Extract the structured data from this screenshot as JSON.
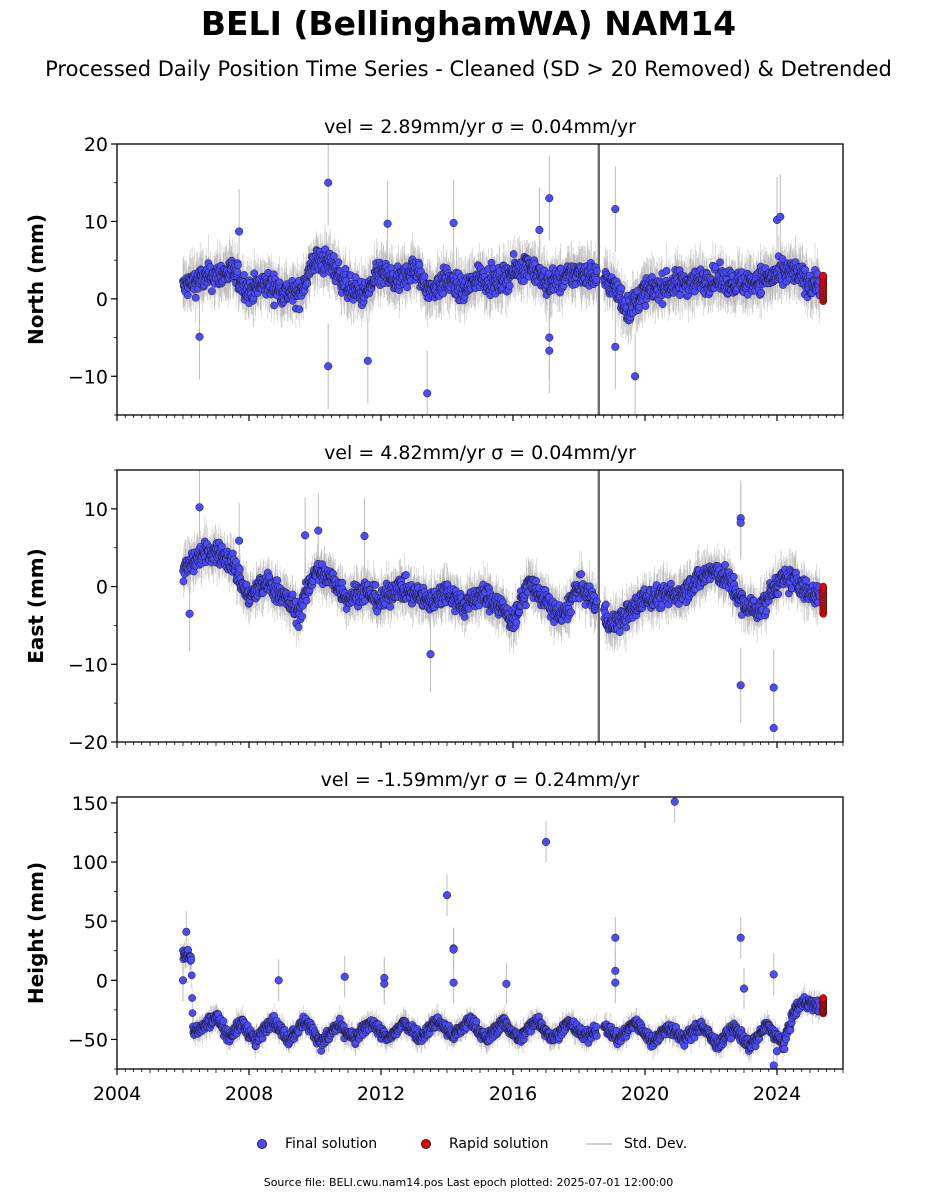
{
  "title": "BELI (BellinghamWA) NAM14",
  "subtitle": "Processed Daily Position Time Series - Cleaned (SD > 20 Removed) & Detrended",
  "legend": {
    "final": "Final solution",
    "rapid": "Rapid solution",
    "stddev": "Std. Dev."
  },
  "footer": "Source file: BELI.cwu.nam14.pos  Last epoch plotted: 2025-07-01 12:00:00",
  "colors": {
    "final": "#4a4aff",
    "rapid": "#ee0000",
    "stddev": "#bdbdbd",
    "edge": "#1a1a1a"
  },
  "chart_data": [
    {
      "type": "scatter",
      "name_panel": "north",
      "title": "vel = 2.89mm/yr   σ = 0.04mm/yr",
      "ylabel": "North (mm)",
      "xlim": [
        2004,
        2026
      ],
      "ylim": [
        -15,
        20
      ],
      "yticks": [
        -10,
        0,
        10,
        20
      ],
      "ytick_labels": [
        "−10",
        "0",
        "10",
        "20"
      ],
      "xticks": [
        2004,
        2008,
        2012,
        2016,
        2020,
        2024
      ],
      "xtick_labels": [],
      "trend": [
        [
          2006.0,
          1.5
        ],
        [
          2006.5,
          2.5
        ],
        [
          2007.0,
          3.0
        ],
        [
          2007.5,
          3.5
        ],
        [
          2008.0,
          1.0
        ],
        [
          2008.5,
          2.0
        ],
        [
          2009.0,
          1.0
        ],
        [
          2009.5,
          0.5
        ],
        [
          2010.0,
          5.0
        ],
        [
          2010.5,
          4.5
        ],
        [
          2011.0,
          1.5
        ],
        [
          2011.5,
          0.5
        ],
        [
          2012.0,
          3.5
        ],
        [
          2012.5,
          2.0
        ],
        [
          2013.0,
          4.0
        ],
        [
          2013.5,
          1.0
        ],
        [
          2014.0,
          2.5
        ],
        [
          2014.5,
          1.0
        ],
        [
          2015.0,
          3.0
        ],
        [
          2015.5,
          2.0
        ],
        [
          2016.0,
          3.5
        ],
        [
          2016.5,
          4.5
        ],
        [
          2017.0,
          2.0
        ],
        [
          2017.5,
          2.5
        ],
        [
          2018.0,
          3.5
        ],
        [
          2018.5,
          3.0
        ],
        [
          2019.0,
          2.0
        ],
        [
          2019.5,
          -1.5
        ],
        [
          2020.0,
          1.0
        ],
        [
          2020.5,
          1.5
        ],
        [
          2021.0,
          2.0
        ],
        [
          2022.0,
          2.5
        ],
        [
          2023.0,
          2.0
        ],
        [
          2024.0,
          3.0
        ],
        [
          2024.5,
          3.5
        ],
        [
          2025.0,
          2.0
        ]
      ],
      "outliers": [
        [
          2010.4,
          15
        ],
        [
          2017.1,
          13
        ],
        [
          2019.1,
          11.6
        ],
        [
          2012.2,
          9.7
        ],
        [
          2014.2,
          9.8
        ],
        [
          2016.8,
          8.9
        ],
        [
          2007.7,
          8.7
        ],
        [
          2024.0,
          10.2
        ],
        [
          2024.1,
          10.6
        ],
        [
          2010.4,
          -8.7
        ],
        [
          2011.6,
          -8
        ],
        [
          2013.4,
          -12.2
        ],
        [
          2019.7,
          -10
        ],
        [
          2017.1,
          -6.7
        ],
        [
          2006.5,
          -4.9
        ],
        [
          2017.1,
          -5.0
        ],
        [
          2019.1,
          -6.2
        ]
      ],
      "noise": 1.6,
      "std": 2.5,
      "rapid": {
        "x": 2025.4,
        "y": [
          -0.3,
          3.0
        ]
      },
      "spike_x": 2018.6
    },
    {
      "type": "scatter",
      "name_panel": "east",
      "title": "vel = 4.82mm/yr   σ = 0.04mm/yr",
      "ylabel": "East (mm)",
      "xlim": [
        2004,
        2026
      ],
      "ylim": [
        -20,
        15
      ],
      "yticks": [
        -20,
        -10,
        0,
        10
      ],
      "ytick_labels": [
        "−20",
        "−10",
        "0",
        "10"
      ],
      "xticks": [
        2004,
        2008,
        2012,
        2016,
        2020,
        2024
      ],
      "xtick_labels": [],
      "trend": [
        [
          2006.0,
          2.0
        ],
        [
          2006.5,
          4.0
        ],
        [
          2007.0,
          4.5
        ],
        [
          2007.5,
          3.0
        ],
        [
          2008.0,
          -1.5
        ],
        [
          2008.5,
          0.5
        ],
        [
          2009.0,
          -1.0
        ],
        [
          2009.5,
          -3.5
        ],
        [
          2010.0,
          2.0
        ],
        [
          2010.5,
          1.0
        ],
        [
          2011.0,
          -1.5
        ],
        [
          2011.5,
          -0.5
        ],
        [
          2012.0,
          -2.0
        ],
        [
          2012.5,
          0.0
        ],
        [
          2013.0,
          -1.0
        ],
        [
          2013.5,
          -2.0
        ],
        [
          2014.0,
          -0.5
        ],
        [
          2014.5,
          -2.5
        ],
        [
          2015.0,
          -1.0
        ],
        [
          2015.5,
          -2.0
        ],
        [
          2016.0,
          -4.5
        ],
        [
          2016.5,
          0.5
        ],
        [
          2017.0,
          -2.0
        ],
        [
          2017.5,
          -4.0
        ],
        [
          2018.0,
          0.0
        ],
        [
          2018.5,
          -2.0
        ],
        [
          2019.0,
          -5.0
        ],
        [
          2019.5,
          -3.5
        ],
        [
          2020.0,
          -1.5
        ],
        [
          2021.0,
          -1.0
        ],
        [
          2022.0,
          2.0
        ],
        [
          2022.5,
          1.0
        ],
        [
          2023.0,
          -2.5
        ],
        [
          2023.5,
          -3.0
        ],
        [
          2024.0,
          0.5
        ],
        [
          2024.5,
          1.0
        ],
        [
          2025.0,
          -1.0
        ]
      ],
      "outliers": [
        [
          2006.5,
          10.2
        ],
        [
          2010.1,
          7.2
        ],
        [
          2011.5,
          6.5
        ],
        [
          2007.7,
          5.9
        ],
        [
          2009.7,
          6.6
        ],
        [
          2022.9,
          8.8
        ],
        [
          2022.9,
          8.2
        ],
        [
          2013.5,
          -8.7
        ],
        [
          2006.2,
          -3.5
        ],
        [
          2022.9,
          -12.7
        ],
        [
          2023.9,
          -13.0
        ],
        [
          2023.9,
          -18.2
        ]
      ],
      "noise": 1.4,
      "std": 2.2,
      "rapid": {
        "x": 2025.4,
        "y": [
          -3.5,
          0.0
        ]
      },
      "spike_x": 2018.6
    },
    {
      "type": "scatter",
      "name_panel": "height",
      "title": "vel = -1.59mm/yr   σ = 0.24mm/yr",
      "ylabel": "Height (mm)",
      "xlim": [
        2004,
        2026
      ],
      "ylim": [
        -75,
        155
      ],
      "yticks": [
        -50,
        0,
        50,
        100,
        150
      ],
      "ytick_labels": [
        "−50",
        "0",
        "50",
        "100",
        "150"
      ],
      "xticks": [
        2004,
        2008,
        2012,
        2016,
        2020,
        2024
      ],
      "xtick_labels": [
        "2004",
        "2008",
        "2012",
        "2016",
        "2020",
        "2024"
      ],
      "trend": [
        [
          2006.0,
          22
        ],
        [
          2006.25,
          20
        ],
        [
          2006.3,
          -42
        ],
        [
          2006.6,
          -40
        ],
        [
          2007.0,
          -30
        ],
        [
          2007.4,
          -48
        ],
        [
          2007.8,
          -36
        ],
        [
          2008.2,
          -52
        ],
        [
          2008.7,
          -33
        ],
        [
          2009.2,
          -50
        ],
        [
          2009.7,
          -34
        ],
        [
          2010.2,
          -53
        ],
        [
          2010.7,
          -38
        ],
        [
          2011.2,
          -50
        ],
        [
          2011.7,
          -35
        ],
        [
          2012.2,
          -50
        ],
        [
          2012.7,
          -36
        ],
        [
          2013.2,
          -48
        ],
        [
          2013.7,
          -34
        ],
        [
          2014.2,
          -47
        ],
        [
          2014.7,
          -34
        ],
        [
          2015.2,
          -50
        ],
        [
          2015.7,
          -35
        ],
        [
          2016.2,
          -50
        ],
        [
          2016.7,
          -33
        ],
        [
          2017.2,
          -49
        ],
        [
          2017.7,
          -36
        ],
        [
          2018.2,
          -48
        ],
        [
          2018.7,
          -38
        ],
        [
          2019.2,
          -50
        ],
        [
          2019.7,
          -35
        ],
        [
          2020.2,
          -52
        ],
        [
          2020.7,
          -40
        ],
        [
          2021.2,
          -50
        ],
        [
          2021.7,
          -38
        ],
        [
          2022.2,
          -55
        ],
        [
          2022.7,
          -40
        ],
        [
          2023.2,
          -56
        ],
        [
          2023.7,
          -38
        ],
        [
          2024.2,
          -55
        ],
        [
          2024.5,
          -28
        ],
        [
          2024.8,
          -18
        ],
        [
          2025.2,
          -22
        ]
      ],
      "outliers": [
        [
          2006.1,
          41
        ],
        [
          2006.0,
          0
        ],
        [
          2014.0,
          72
        ],
        [
          2014.2,
          27
        ],
        [
          2014.2,
          26
        ],
        [
          2017.0,
          117
        ],
        [
          2019.1,
          36
        ],
        [
          2019.1,
          8
        ],
        [
          2019.1,
          -2
        ],
        [
          2020.9,
          151
        ],
        [
          2022.9,
          36
        ],
        [
          2023.9,
          5
        ],
        [
          2010.9,
          3
        ],
        [
          2012.1,
          2
        ],
        [
          2012.1,
          -3
        ],
        [
          2008.9,
          0
        ],
        [
          2014.2,
          -2
        ],
        [
          2015.8,
          -3
        ],
        [
          2023.0,
          -7
        ],
        [
          2023.9,
          -72
        ],
        [
          2024.0,
          -60
        ]
      ],
      "noise": 5,
      "std": 8,
      "rapid": {
        "x": 2025.4,
        "y": [
          -28,
          -15
        ]
      },
      "spike_x": null
    }
  ]
}
